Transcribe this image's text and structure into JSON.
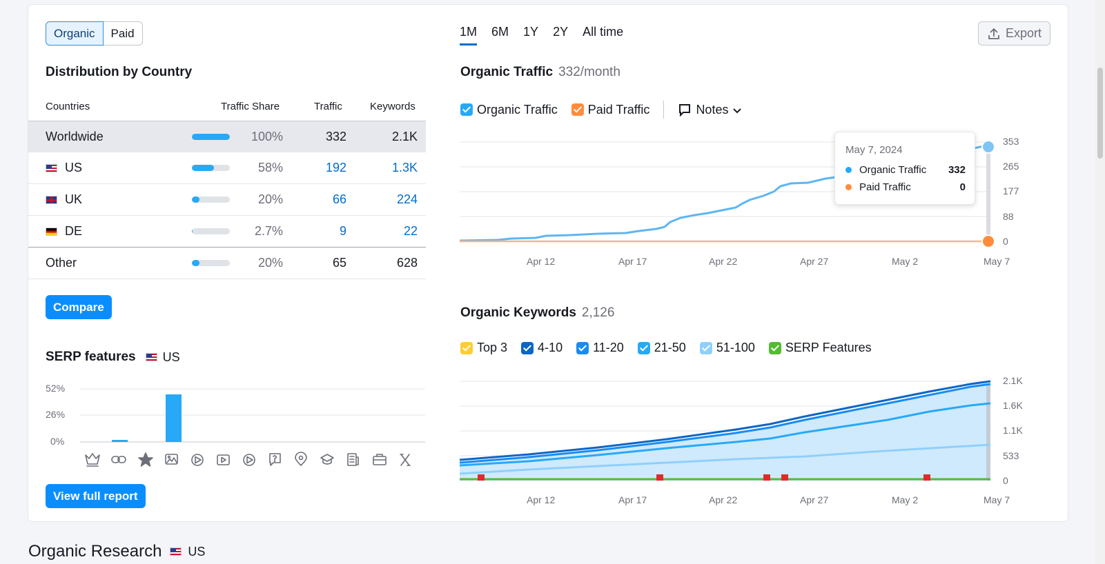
{
  "segment": {
    "organic": "Organic",
    "paid": "Paid"
  },
  "distribution": {
    "title": "Distribution by Country",
    "headers": {
      "countries": "Countries",
      "share": "Traffic Share",
      "traffic": "Traffic",
      "keywords": "Keywords"
    },
    "rows": [
      {
        "name": "Worldwide",
        "share": "100%",
        "share_value": 100,
        "traffic": "332",
        "keywords": "2.1K"
      },
      {
        "name": "US",
        "share": "58%",
        "share_value": 58,
        "traffic": "192",
        "keywords": "1.3K"
      },
      {
        "name": "UK",
        "share": "20%",
        "share_value": 20,
        "traffic": "66",
        "keywords": "224"
      },
      {
        "name": "DE",
        "share": "2.7%",
        "share_value": 2.7,
        "traffic": "9",
        "keywords": "22"
      },
      {
        "name": "Other",
        "share": "20%",
        "share_value": 20,
        "traffic": "65",
        "keywords": "628"
      }
    ],
    "compare_label": "Compare"
  },
  "serp": {
    "title": "SERP features",
    "country": "US",
    "y_ticks": [
      "52%",
      "26%",
      "0%"
    ],
    "icons": [
      "crown-icon",
      "link-icon",
      "star-icon",
      "image-icon",
      "video-icon",
      "video-player-icon",
      "play-icon",
      "faq-icon",
      "location-icon",
      "education-icon",
      "news-icon",
      "jobs-icon",
      "x-icon"
    ],
    "view_full_report": "View full report"
  },
  "periods": [
    "1M",
    "6M",
    "1Y",
    "2Y",
    "All time"
  ],
  "export_label": "Export",
  "organic_traffic": {
    "title": "Organic Traffic",
    "count": "332/month",
    "legend": {
      "organic": "Organic Traffic",
      "paid": "Paid Traffic",
      "notes": "Notes"
    },
    "y_ticks": [
      "353",
      "265",
      "177",
      "88",
      "0"
    ],
    "x_ticks": [
      "Apr 12",
      "Apr 17",
      "Apr 22",
      "Apr 27",
      "May 2",
      "May 7"
    ],
    "tooltip": {
      "date": "May 7, 2024",
      "organic_label": "Organic Traffic",
      "organic_value": "332",
      "paid_label": "Paid Traffic",
      "paid_value": "0"
    }
  },
  "organic_keywords": {
    "title": "Organic Keywords",
    "count": "2,126",
    "legend": [
      "Top 3",
      "4-10",
      "11-20",
      "21-50",
      "51-100",
      "SERP Features"
    ],
    "legend_colors": [
      "#ffcc33",
      "#0c66c4",
      "#1a8cf0",
      "#27a9f8",
      "#8fd0fb",
      "#54bb33"
    ],
    "y_ticks": [
      "2.1K",
      "1.6K",
      "1.1K",
      "533",
      "0"
    ],
    "x_ticks": [
      "Apr 12",
      "Apr 17",
      "Apr 22",
      "Apr 27",
      "May 2",
      "May 7"
    ]
  },
  "bottom": {
    "title": "Organic Research",
    "country": "US"
  },
  "colors": {
    "accent": "#0a8eff",
    "organic": "#27a9f8",
    "paid": "#ff8c3c",
    "link": "#006dca"
  }
}
